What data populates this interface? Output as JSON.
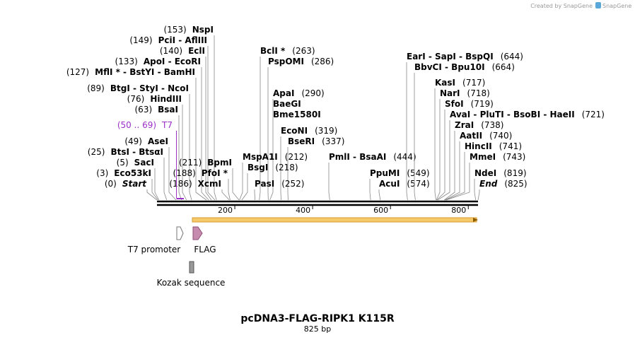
{
  "credit": "Created by SnapGene",
  "title": "pcDNA3-FLAG-RIPK1 K115R",
  "size": {
    "value": 825,
    "label": "825 bp"
  },
  "ruler": {
    "ticks": [
      200,
      400,
      600,
      800
    ]
  },
  "primer": {
    "range": {
      "value": [
        50,
        69
      ],
      "label": "(50 .. 69)"
    },
    "name": "T7"
  },
  "features": {
    "promoter": "T7 promoter",
    "tag": "FLAG",
    "kozak": "Kozak sequence"
  },
  "enzymes": [
    {
      "name": "NspI",
      "site": {
        "value": 153,
        "label": "(153)"
      }
    },
    {
      "name": "PciI  - AflIII",
      "site": {
        "value": 149,
        "label": "(149)"
      }
    },
    {
      "name": "EclI",
      "site": {
        "value": 140,
        "label": "(140)"
      }
    },
    {
      "name": "ApoI  - EcoRI",
      "site": {
        "value": 133,
        "label": "(133)"
      }
    },
    {
      "name": "MflI *  - BstYI  - BamHI",
      "site": {
        "value": 127,
        "label": "(127)"
      }
    },
    {
      "name": "BtgI  - StyI  - NcoI",
      "site": {
        "value": 89,
        "label": "(89)"
      }
    },
    {
      "name": "HindIII",
      "site": {
        "value": 76,
        "label": "(76)"
      }
    },
    {
      "name": "BsaI",
      "site": {
        "value": 63,
        "label": "(63)"
      }
    },
    {
      "name": "AseI",
      "site": {
        "value": 49,
        "label": "(49)"
      }
    },
    {
      "name": "BtsI  - BtsαI",
      "site": {
        "value": 25,
        "label": "(25)"
      }
    },
    {
      "name": "SacI",
      "site": {
        "value": 5,
        "label": "(5)"
      }
    },
    {
      "name": "Eco53kI",
      "site": {
        "value": 3,
        "label": "(3)"
      }
    },
    {
      "name": "Start",
      "site": {
        "value": 0,
        "label": "(0)"
      }
    },
    {
      "name": "BpmI",
      "site": {
        "value": 211,
        "label": "(211)"
      }
    },
    {
      "name": "PfoI *",
      "site": {
        "value": 188,
        "label": "(188)"
      }
    },
    {
      "name": "XcmI",
      "site": {
        "value": 186,
        "label": "(186)"
      }
    },
    {
      "name": "BclI *",
      "site": {
        "value": 263,
        "label": "(263)"
      }
    },
    {
      "name": "PspOMI",
      "site": {
        "value": 286,
        "label": "(286)"
      }
    },
    {
      "name": "ApaI",
      "site": {
        "value": 290,
        "label": "(290)"
      }
    },
    {
      "name": "BaeGI"
    },
    {
      "name": "Bme1580I"
    },
    {
      "name": "EcoNI",
      "site": {
        "value": 319,
        "label": "(319)"
      }
    },
    {
      "name": "BseRI",
      "site": {
        "value": 337,
        "label": "(337)"
      }
    },
    {
      "name": "MspA1I",
      "site": {
        "value": 212,
        "label": "(212)"
      }
    },
    {
      "name": "BsgI",
      "site": {
        "value": 218,
        "label": "(218)"
      }
    },
    {
      "name": "PasI",
      "site": {
        "value": 252,
        "label": "(252)"
      }
    },
    {
      "name": "PmlI  - BsaAI",
      "site": {
        "value": 444,
        "label": "(444)"
      }
    },
    {
      "name": "PpuMI",
      "site": {
        "value": 549,
        "label": "(549)"
      }
    },
    {
      "name": "AcuI",
      "site": {
        "value": 574,
        "label": "(574)"
      }
    },
    {
      "name": "EarI  - SapI  - BspQI",
      "site": {
        "value": 644,
        "label": "(644)"
      }
    },
    {
      "name": "BbvCI  - Bpu10I",
      "site": {
        "value": 664,
        "label": "(664)"
      }
    },
    {
      "name": "KasI",
      "site": {
        "value": 717,
        "label": "(717)"
      }
    },
    {
      "name": "NarI",
      "site": {
        "value": 718,
        "label": "(718)"
      }
    },
    {
      "name": "SfoI",
      "site": {
        "value": 719,
        "label": "(719)"
      }
    },
    {
      "name": "AvaI  - PluTI  - BsoBI  - HaeII",
      "site": {
        "value": 721,
        "label": "(721)"
      }
    },
    {
      "name": "ZraI",
      "site": {
        "value": 738,
        "label": "(738)"
      }
    },
    {
      "name": "AatII",
      "site": {
        "value": 740,
        "label": "(740)"
      }
    },
    {
      "name": "HincII",
      "site": {
        "value": 741,
        "label": "(741)"
      }
    },
    {
      "name": "MmeI",
      "site": {
        "value": 743,
        "label": "(743)"
      }
    },
    {
      "name": "NdeI",
      "site": {
        "value": 819,
        "label": "(819)"
      }
    },
    {
      "name": "End",
      "site": {
        "value": 825,
        "label": "(825)"
      }
    }
  ]
}
